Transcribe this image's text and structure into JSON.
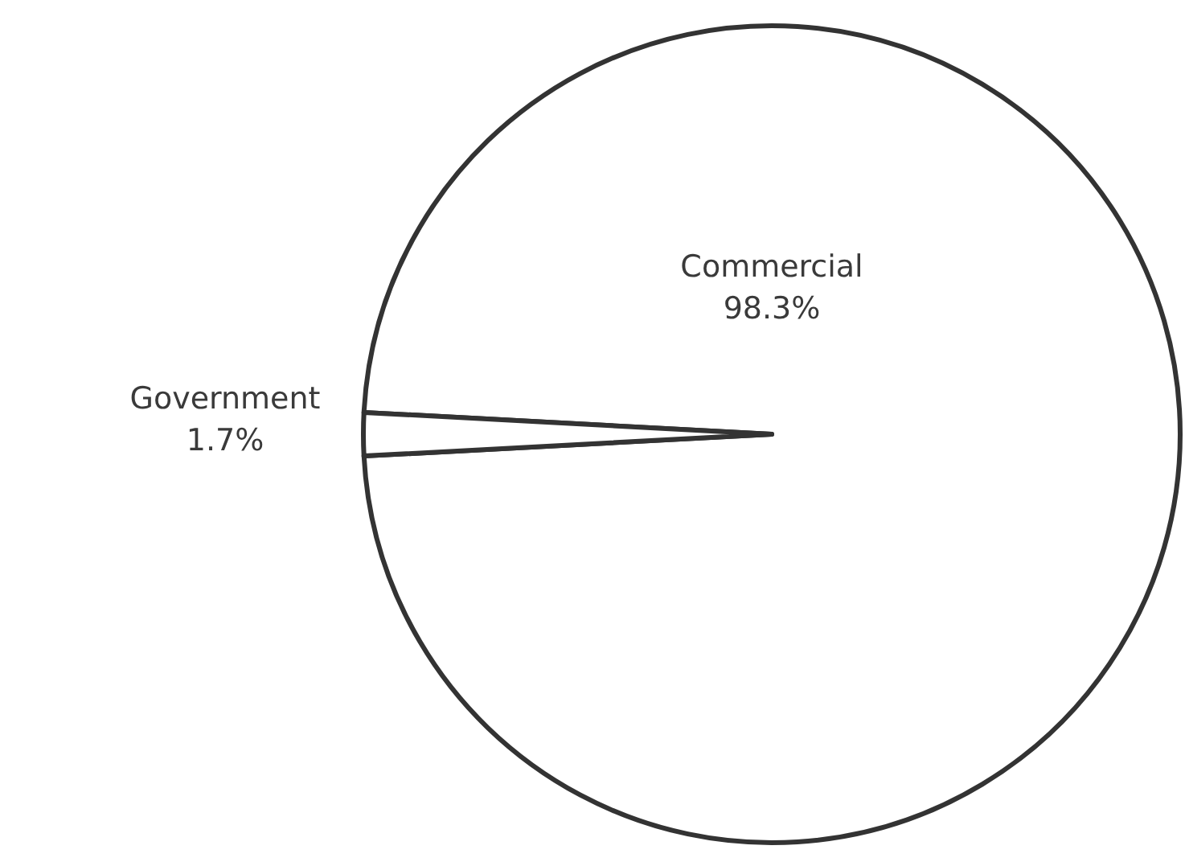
{
  "chart_data": {
    "type": "pie",
    "categories": [
      "Commercial",
      "Government"
    ],
    "values": [
      98.3,
      1.7
    ],
    "colors": [
      "#ffffff",
      "#ffffff"
    ],
    "value_labels": [
      "98.3%",
      "1.7%"
    ],
    "legend": false
  }
}
